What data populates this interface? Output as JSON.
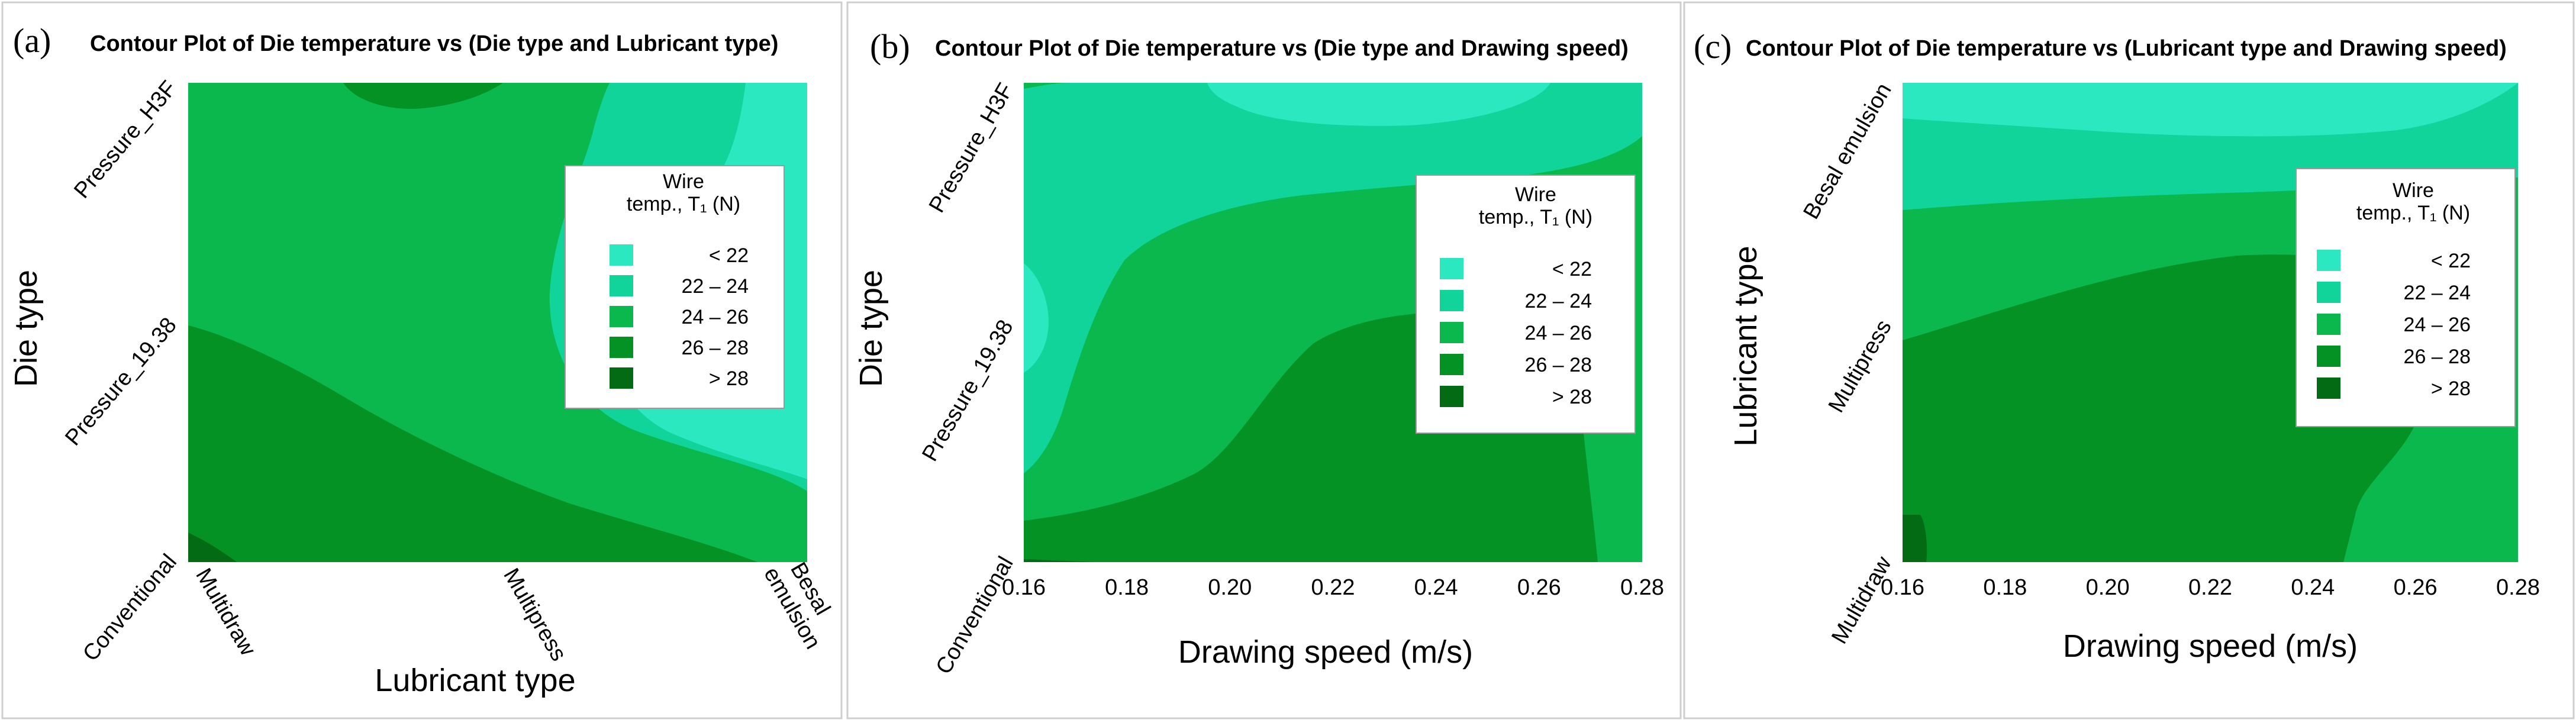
{
  "figure": {
    "colors": {
      "lt22": "#2be8c0",
      "b22_24": "#10d49a",
      "b24_26": "#0bb84d",
      "b26_28": "#049224",
      "gt28": "#036b14",
      "frame": "#cfcfcf"
    }
  },
  "chart_data": [
    {
      "type": "contour",
      "panel_label": "(a)",
      "title": "Contour Plot of Die temperature vs (Die type and Lubricant type)",
      "xlabel": "Lubricant type",
      "ylabel": "Die type",
      "x_categories": [
        "Multidraw",
        "Multipress",
        "Besal emulsion"
      ],
      "y_categories": [
        "Conventional",
        "Pressure_19.38",
        "Pressure_H3F"
      ],
      "legend": {
        "title_line1": "Wire",
        "title_line2": "temp., T₁ (N)",
        "levels": [
          "< 22",
          "22 – 24",
          "24 – 26",
          "26 – 28",
          "> 28"
        ],
        "placement": "right"
      }
    },
    {
      "type": "contour",
      "panel_label": "(b)",
      "title": "Contour Plot of Die temperature vs (Die type and Drawing speed)",
      "xlabel": "Drawing speed (m/s)",
      "ylabel": "Die type",
      "x_ticks": [
        "0.16",
        "0.18",
        "0.20",
        "0.22",
        "0.24",
        "0.26",
        "0.28"
      ],
      "xlim": [
        0.16,
        0.28
      ],
      "y_categories": [
        "Conventional",
        "Pressure_19.38",
        "Pressure_H3F"
      ],
      "legend": {
        "title_line1": "Wire",
        "title_line2": "temp., T₁ (N)",
        "levels": [
          "< 22",
          "22 – 24",
          "24 – 26",
          "26 – 28",
          "> 28"
        ],
        "placement": "right"
      }
    },
    {
      "type": "contour",
      "panel_label": "(c)",
      "title": "Contour Plot of Die temperature vs (Lubricant type and Drawing speed)",
      "xlabel": "Drawing speed (m/s)",
      "ylabel": "Lubricant  type",
      "x_ticks": [
        "0.16",
        "0.18",
        "0.20",
        "0.22",
        "0.24",
        "0.26",
        "0.28"
      ],
      "xlim": [
        0.16,
        0.28
      ],
      "y_categories": [
        "Multidraw",
        "Multipress",
        "Besal emulsion"
      ],
      "legend": {
        "title_line1": "Wire",
        "title_line2": "temp., T₁ (N)",
        "levels": [
          "< 22",
          "22 – 24",
          "24 – 26",
          "26 – 28",
          "> 28"
        ],
        "placement": "right"
      }
    }
  ]
}
